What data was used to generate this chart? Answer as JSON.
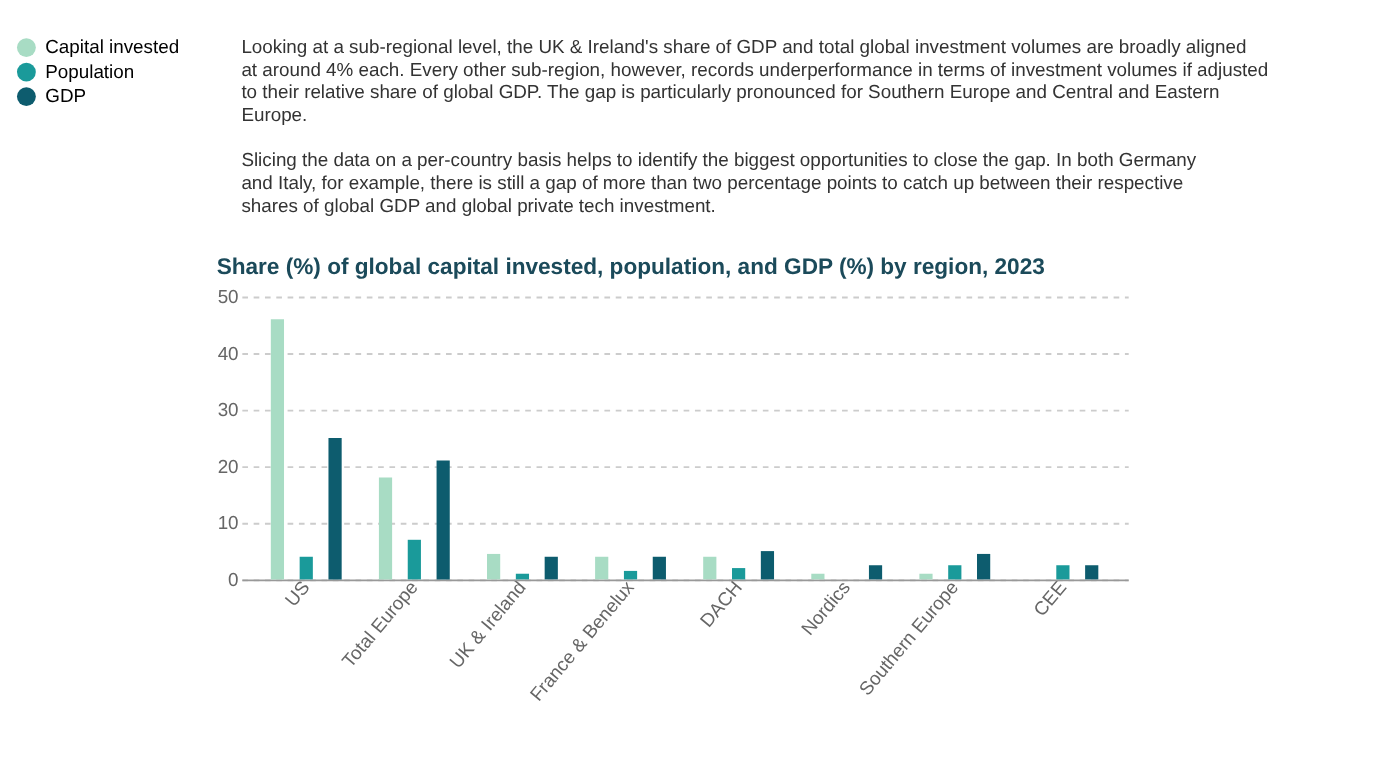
{
  "chart_data": {
    "type": "bar",
    "title": "Share (%) of global capital invested, population, and GDP (%) by region, 2023",
    "annotations": [
      "Looking at a sub-regional level, the UK & Ireland's share of GDP and total global investment volumes are broadly aligned at around 4% each. Every other sub-region, however, records underperformance in terms of investment volumes if adjusted to their relative share of global GDP. The gap is particularly pronounced for Southern Europe and Central and Eastern Europe.",
      "Slicing the data on a per-country basis helps to identify the biggest opportunities to close the gap. In both Germany and Italy, for example, there is still a gap of more than two percentage points to catch up between their respective shares of global GDP and global private tech investment."
    ],
    "categories": [
      "US",
      "Total Europe",
      "UK & Ireland",
      "France & Benelux",
      "DACH",
      "Nordics",
      "Southern Europe",
      "CEE"
    ],
    "series": [
      {
        "name": "Capital invested",
        "color": "#a8dcc4",
        "values": [
          46,
          18,
          4.5,
          4,
          4,
          1,
          1,
          0
        ]
      },
      {
        "name": "Population",
        "color": "#1a9a9a",
        "values": [
          4,
          7,
          1,
          1.5,
          2,
          0,
          2.5,
          2.5
        ]
      },
      {
        "name": "GDP",
        "color": "#0d5c6e",
        "values": [
          25,
          21,
          4,
          4,
          5,
          2.5,
          4.5,
          2.5
        ]
      }
    ],
    "ylim": [
      0,
      50
    ],
    "yticks": [
      0,
      10,
      20,
      30,
      40,
      50
    ],
    "grid": "y",
    "legend": "left"
  }
}
